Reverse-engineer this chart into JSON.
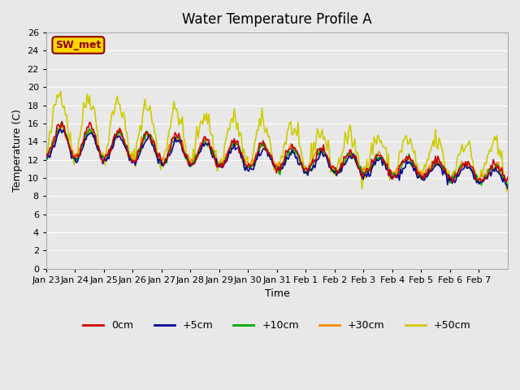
{
  "title": "Water Temperature Profile A",
  "xlabel": "Time",
  "ylabel": "Temperature (C)",
  "ylim": [
    0,
    26
  ],
  "yticks": [
    0,
    2,
    4,
    6,
    8,
    10,
    12,
    14,
    16,
    18,
    20,
    22,
    24,
    26
  ],
  "annotation_text": "SW_met",
  "annotation_color": "#8B0000",
  "annotation_bg": "#FFD700",
  "line_colors": {
    "0cm": "#CC0000",
    "+5cm": "#000099",
    "+10cm": "#00AA00",
    "+30cm": "#FF8800",
    "+50cm": "#CCCC00"
  },
  "background_color": "#E8E8E8",
  "plot_bg_color": "#E8E8E8",
  "grid_color": "#FFFFFF",
  "tick_labels": [
    "Jan 23",
    "Jan 24",
    "Jan 25",
    "Jan 26",
    "Jan 27",
    "Jan 28",
    "Jan 29",
    "Jan 30",
    "Jan 31",
    "Feb 1",
    "Feb 2",
    "Feb 3",
    "Feb 4",
    "Feb 5",
    "Feb 6",
    "Feb 7"
  ],
  "legend_entries": [
    "0cm",
    "+5cm",
    "+10cm",
    "+30cm",
    "+50cm"
  ],
  "n_days": 16,
  "pts_per_day": 24
}
